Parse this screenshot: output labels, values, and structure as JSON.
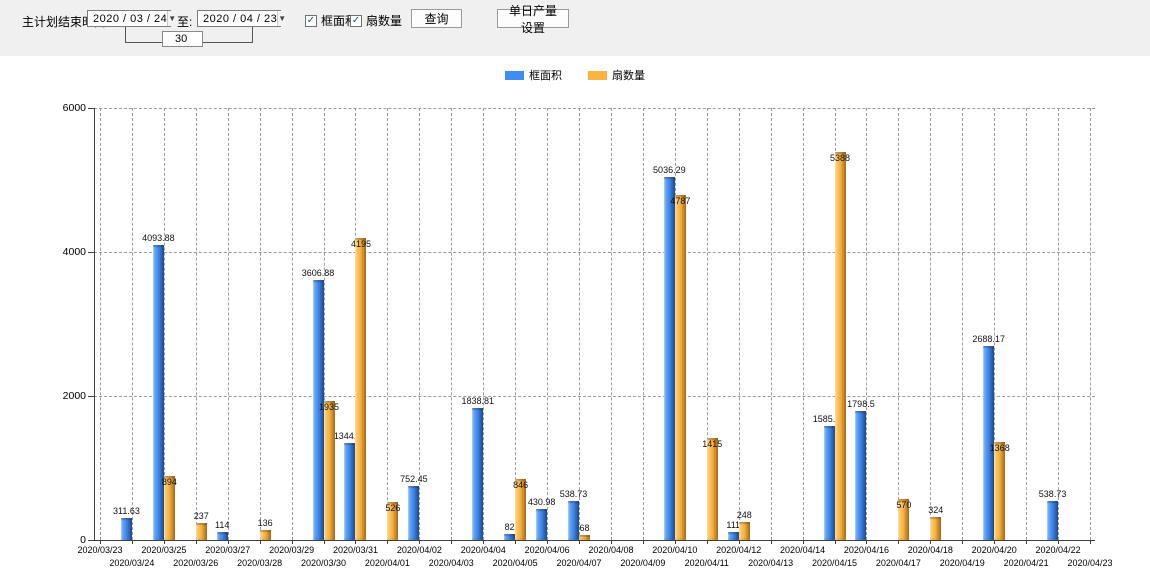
{
  "page": {
    "toolbar_background": "#f0f0f0",
    "chart_background": "#ffffff",
    "left_edge_color": "#54747f"
  },
  "icons": {
    "dropdown_arrow": "▼",
    "checkbox_checked": "✓"
  },
  "toolbar": {
    "label_main": "主计划结束时间:",
    "date_from": "2020 / 03 / 24",
    "label_to": "至:",
    "date_to": "2020 / 04 / 23",
    "interval_value": "30",
    "checkbox_area_label": "框面积",
    "checkbox_fan_label": "扇数量",
    "query_button": "查询",
    "daily_output_button": "单日产量设置"
  },
  "legend": [
    {
      "label": "框面积",
      "color": "#418CF0"
    },
    {
      "label": "扇数量",
      "color": "#FCB441"
    }
  ],
  "chart_data": {
    "type": "bar",
    "title": "",
    "xlabel": "",
    "ylabel": "",
    "ylim": [
      0,
      6000
    ],
    "yticks": [
      0,
      2000,
      4000,
      6000
    ],
    "grid": true,
    "legend_position": "top",
    "categories": [
      "2020/03/23",
      "2020/03/24",
      "2020/03/25",
      "2020/03/26",
      "2020/03/27",
      "2020/03/28",
      "2020/03/29",
      "2020/03/30",
      "2020/03/31",
      "2020/04/01",
      "2020/04/02",
      "2020/04/03",
      "2020/04/04",
      "2020/04/05",
      "2020/04/06",
      "2020/04/07",
      "2020/04/08",
      "2020/04/09",
      "2020/04/10",
      "2020/04/11",
      "2020/04/12",
      "2020/04/13",
      "2020/04/14",
      "2020/04/15",
      "2020/04/16",
      "2020/04/17",
      "2020/04/18",
      "2020/04/19",
      "2020/04/20",
      "2020/04/21",
      "2020/04/22",
      "2020/04/23"
    ],
    "series": [
      {
        "name": "框面积",
        "color": "#418CF0",
        "values": [
          null,
          311.63,
          4093.88,
          null,
          114,
          null,
          null,
          3606.88,
          1344.95,
          null,
          752.45,
          null,
          1838.81,
          82,
          430.98,
          538.73,
          null,
          null,
          5036.29,
          null,
          111,
          null,
          null,
          1585.96,
          1798.5,
          null,
          null,
          null,
          2688.17,
          null,
          538.73,
          null
        ]
      },
      {
        "name": "扇数量",
        "color": "#FCB441",
        "values": [
          null,
          null,
          894,
          237,
          null,
          136,
          null,
          1935,
          4195,
          526,
          null,
          null,
          null,
          846,
          null,
          68,
          null,
          null,
          4787,
          1415,
          248,
          null,
          null,
          5388,
          null,
          570,
          324,
          null,
          1368,
          null,
          null,
          null
        ]
      }
    ]
  }
}
